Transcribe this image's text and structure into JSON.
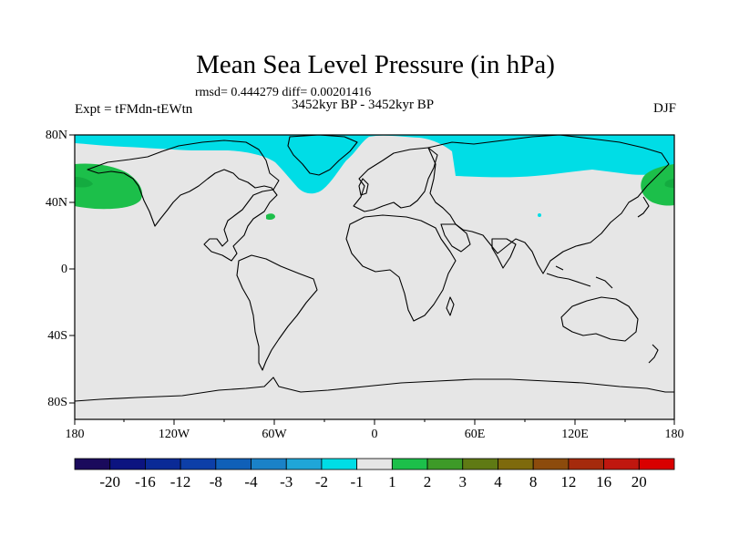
{
  "title": "Mean Sea Level Pressure (in hPa)",
  "stats": "rmsd= 0.444279 diff= 0.00201416",
  "period": "3452kyr BP - 3452kyr BP",
  "experiment": "Expt = tFMdn-tEWtn",
  "season": "DJF",
  "latitude_labels": [
    "80N",
    "40N",
    "0",
    "40S",
    "80S"
  ],
  "longitude_labels": [
    "180",
    "120W",
    "60W",
    "0",
    "60E",
    "120E",
    "180"
  ],
  "colorbar": {
    "labels": [
      "-20",
      "-16",
      "-12",
      "-8",
      "-4",
      "-3",
      "-2",
      "-1",
      "1",
      "2",
      "3",
      "4",
      "8",
      "12",
      "16",
      "20"
    ],
    "colors": [
      "#1a0a5c",
      "#0c1480",
      "#0a2a96",
      "#0d3fa8",
      "#1060b8",
      "#1a82c8",
      "#1fa6d8",
      "#00dde6",
      "#e6e6e6",
      "#1cbf4a",
      "#3d9a28",
      "#5f7a14",
      "#7e6a0c",
      "#8c4b0c",
      "#a52a0c",
      "#c0170f",
      "#d90000"
    ]
  },
  "colors": {
    "land_ocean_base": "#e6e6e6",
    "negative_anomaly": "#00dde6",
    "positive_anomaly": "#1cbf4a",
    "coast": "#000000"
  }
}
